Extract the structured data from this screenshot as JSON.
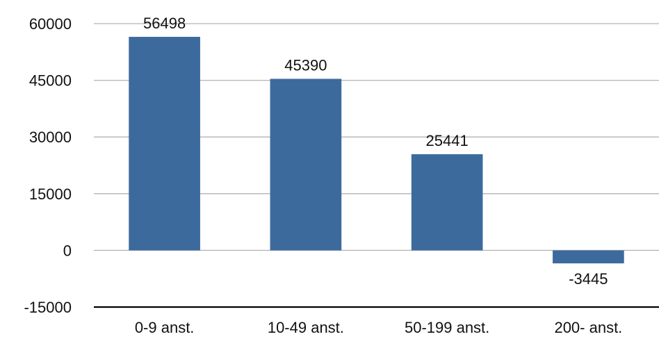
{
  "chart_data": {
    "type": "bar",
    "title": "",
    "xlabel": "",
    "ylabel": "",
    "categories": [
      "0-9 anst.",
      "10-49 anst.",
      "50-199 anst.",
      "200- anst."
    ],
    "values": [
      56498,
      45390,
      25441,
      -3445
    ],
    "data_labels": [
      "56498",
      "45390",
      "25441",
      "-3445"
    ],
    "ylim": [
      -15000,
      60000
    ],
    "yticks": [
      60000,
      45000,
      30000,
      15000,
      0,
      -15000
    ],
    "ytick_labels": [
      "60000",
      "45000",
      "30000",
      "15000",
      "0",
      "-15000"
    ],
    "grid": true,
    "legend": "none",
    "colors": {
      "bar": "#3d6a9c",
      "grid": "#b3b3b3",
      "baseline_axis": "#000000",
      "text": "#111111"
    }
  }
}
